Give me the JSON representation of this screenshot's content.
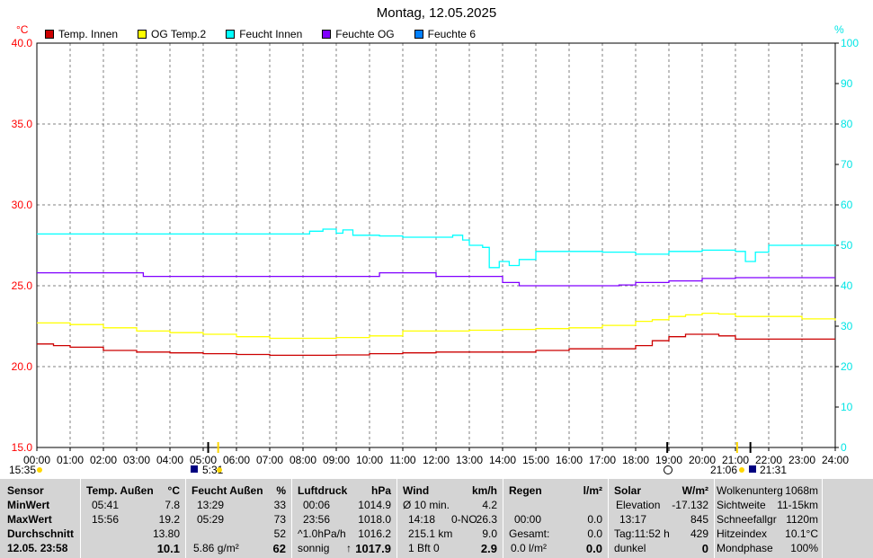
{
  "chart_data": {
    "type": "line",
    "title": "Montag, 12.05.2025",
    "ylabel_left": "°C",
    "ylabel_right": "%",
    "ylim_left": [
      15,
      40
    ],
    "ylim_right": [
      0,
      100
    ],
    "xlim": [
      0,
      24
    ],
    "grid": true,
    "legend_position": "top-left",
    "x_ticks": [
      "00:00",
      "01:00",
      "02:00",
      "03:00",
      "04:00",
      "05:00",
      "06:00",
      "07:00",
      "08:00",
      "09:00",
      "10:00",
      "11:00",
      "12:00",
      "13:00",
      "14:00",
      "15:00",
      "16:00",
      "17:00",
      "18:00",
      "19:00",
      "20:00",
      "21:00",
      "22:00",
      "23:00",
      "24:00"
    ],
    "y_ticks_left": [
      "15.0",
      "20.0",
      "25.0",
      "30.0",
      "35.0",
      "40.0"
    ],
    "y_ticks_right": [
      "0",
      "10",
      "20",
      "30",
      "40",
      "50",
      "60",
      "70",
      "80",
      "90",
      "100"
    ],
    "series": [
      {
        "name": "Temp. Innen",
        "axis": "left",
        "color": "#cc0000",
        "x": [
          0,
          0.5,
          1,
          2,
          3,
          4,
          5,
          6,
          7,
          8,
          9,
          10,
          11,
          12,
          13,
          14,
          15,
          16,
          17,
          18,
          18.5,
          19,
          19.5,
          20,
          20.5,
          21,
          21.5,
          22,
          23,
          24
        ],
        "y": [
          21.4,
          21.3,
          21.2,
          21.0,
          20.9,
          20.85,
          20.8,
          20.75,
          20.7,
          20.7,
          20.72,
          20.8,
          20.85,
          20.9,
          20.9,
          20.9,
          21.0,
          21.1,
          21.1,
          21.3,
          21.6,
          21.85,
          22.0,
          22.0,
          21.9,
          21.7,
          21.7,
          21.7,
          21.7,
          21.7
        ]
      },
      {
        "name": "OG Temp.2",
        "axis": "left",
        "color": "#ffff00",
        "x": [
          0,
          1,
          2,
          3,
          4,
          5,
          6,
          7,
          8,
          9,
          10,
          11,
          12,
          13,
          14,
          15,
          16,
          17,
          18,
          18.5,
          19,
          19.5,
          20,
          20.5,
          21,
          22,
          23,
          24
        ],
        "y": [
          22.7,
          22.6,
          22.4,
          22.2,
          22.1,
          22.0,
          21.85,
          21.75,
          21.75,
          21.8,
          21.9,
          22.2,
          22.2,
          22.25,
          22.3,
          22.35,
          22.4,
          22.55,
          22.8,
          22.9,
          23.1,
          23.2,
          23.3,
          23.25,
          23.1,
          23.1,
          22.95,
          22.85
        ]
      },
      {
        "name": "Feucht Innen",
        "axis": "right",
        "color": "#00ffff",
        "x": [
          0,
          4,
          8,
          8.2,
          8.6,
          9,
          9.2,
          9.5,
          10,
          10.3,
          11,
          12,
          12.5,
          12.8,
          13,
          13.4,
          13.6,
          13.9,
          14.2,
          14.5,
          15,
          16,
          17,
          18,
          19,
          20,
          21,
          21.3,
          21.6,
          22,
          23,
          24
        ],
        "y": [
          52.8,
          52.8,
          52.8,
          53.5,
          54.0,
          53.0,
          53.8,
          52.5,
          52.5,
          52.3,
          52.0,
          52.0,
          52.5,
          51.3,
          50.0,
          49.5,
          44.5,
          46.0,
          45.0,
          46.5,
          48.5,
          48.5,
          48.3,
          47.8,
          48.5,
          48.8,
          48.5,
          46.0,
          48.3,
          50.0,
          50.0,
          49.8
        ]
      },
      {
        "name": "Feuchte OG",
        "axis": "right",
        "color": "#8000ff",
        "x": [
          0,
          2,
          3.1,
          3.2,
          4,
          6,
          8,
          10,
          10.3,
          11,
          12,
          13,
          13.8,
          14,
          14.5,
          15,
          16,
          17,
          17.5,
          18,
          19,
          20,
          21,
          22,
          23,
          24
        ],
        "y": [
          43.2,
          43.2,
          43.2,
          42.3,
          42.3,
          42.3,
          42.3,
          42.3,
          43.2,
          43.2,
          42.3,
          42.3,
          42.3,
          40.8,
          40.0,
          40.0,
          40.0,
          40.0,
          40.2,
          40.8,
          41.2,
          41.8,
          42.0,
          42.0,
          42.0,
          42.0
        ]
      },
      {
        "name": "Feuchte 6",
        "axis": "right",
        "color": "#0080ff",
        "x": [],
        "y": []
      }
    ],
    "time_labels": [
      "15:35",
      "5:31",
      "21:06",
      "21:31"
    ]
  },
  "panel": {
    "col1": {
      "r0": "Sensor",
      "r1": "MinWert",
      "r2": "MaxWert",
      "r3": "Durchschnitt",
      "r4": "12.05. 23:58"
    },
    "col2": {
      "h": "Temp. Außen",
      "u": "°C",
      "r1a": "05:41",
      "r1b": "7.8",
      "r2a": "15:56",
      "r2b": "19.2",
      "r3b": "13.80",
      "r4b": "10.1"
    },
    "col3": {
      "h": "Feucht Außen",
      "u": "%",
      "r1a": "13:29",
      "r1b": "33",
      "r2a": "05:29",
      "r2b": "73",
      "r3b": "52",
      "r4a": "5.86 g/m²",
      "r4b": "62"
    },
    "col4": {
      "h": "Luftdruck",
      "u": "hPa",
      "r1a": "00:06",
      "r1b": "1014.9",
      "r2a": "23:56",
      "r2b": "1018.0",
      "r3a": "^1.0hPa/h",
      "r3b": "1016.2",
      "r4a": "sonnig",
      "r4b": "1017.9"
    },
    "col5": {
      "h": "Wind",
      "u": "km/h",
      "r1a": "Ø 10 min.",
      "r1b": "4.2",
      "r2a": "14:18",
      "r2m": "0-NO",
      "r2b": "26.3",
      "r3a": "215.1 km",
      "r3b": "9.0",
      "r4a": "1 Bft 0",
      "r4b": "2.9"
    },
    "col6": {
      "h": "Regen",
      "u": "l/m²",
      "r2a": "00:00",
      "r2b": "0.0",
      "r3a": "Gesamt:",
      "r3b": "0.0",
      "r4a": "0.0 l/m²",
      "r4b": "0.0"
    },
    "col7": {
      "h": "Solar",
      "u": "W/m²",
      "r1a": "Elevation",
      "r1b": "-17.132",
      "r2a": "13:17",
      "r2b": "845",
      "r3a": "Tag:11:52 h",
      "r3b": "429",
      "r4a": "dunkel",
      "r4b": "0"
    },
    "col8": {
      "r0a": "Wolkenunterg",
      "r0b": "1068m",
      "r1a": "Sichtweite",
      "r1b": "11-15km",
      "r2a": "Schneefallgr",
      "r2b": "1120m",
      "r3a": "Hitzeindex",
      "r3b": "10.1°C",
      "r4a": "Mondphase",
      "r4b": "100%"
    }
  }
}
